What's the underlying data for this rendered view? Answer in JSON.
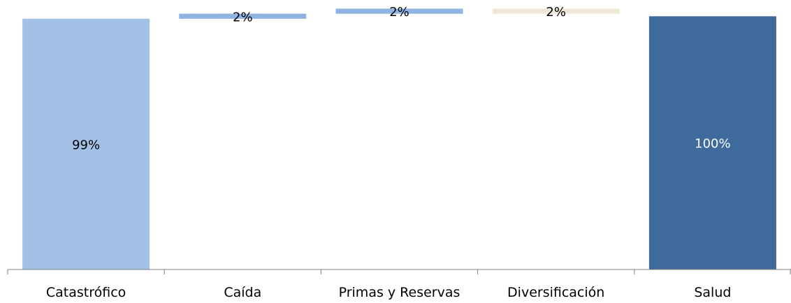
{
  "chart_data": {
    "type": "waterfall",
    "categories": [
      "Catastrófico",
      "Caída",
      "Primas y Reservas",
      "Diversificación",
      "Salud"
    ],
    "values": [
      99,
      2,
      2,
      -2,
      100
    ],
    "labels": [
      "99%",
      "2%",
      "2%",
      "2%",
      "100%"
    ],
    "ylim": [
      0,
      102
    ],
    "xlabel": "",
    "ylabel": "",
    "title": "",
    "grid": false,
    "legend": "none",
    "colors": [
      "#a3c1e6",
      "#8fb4e1",
      "#8fb4e1",
      "#eee9d6",
      "#3f6a9c"
    ],
    "label_colors": [
      "#000000",
      "#000000",
      "#000000",
      "#000000",
      "#ffffff"
    ]
  }
}
